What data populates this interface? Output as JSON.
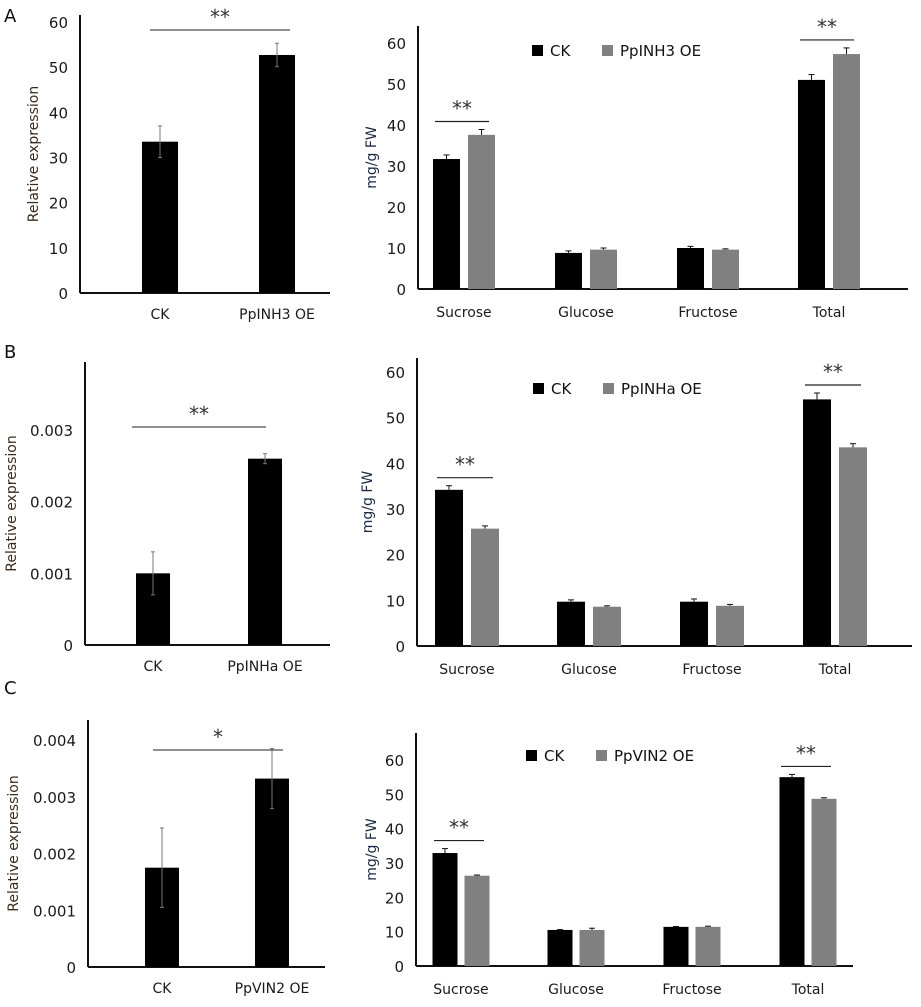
{
  "figure": {
    "panels": [
      {
        "letter": "A"
      },
      {
        "letter": "B"
      },
      {
        "letter": "C"
      }
    ]
  },
  "colors": {
    "ck": "#000000",
    "oe": "#808080",
    "axis": "#111111",
    "errorbar_left": "#777777",
    "errorbar_right": "#111111"
  },
  "chart_data": [
    {
      "id": "A-expression",
      "panel": "A",
      "type": "bar",
      "title": "",
      "xlabel": "",
      "ylabel": "Relative expression",
      "categories": [
        "CK",
        "PpINH3 OE"
      ],
      "values": [
        33.5,
        52.7
      ],
      "errors": [
        3.5,
        2.6
      ],
      "ylim": [
        0,
        60
      ],
      "yticks": [
        0,
        10,
        20,
        30,
        40,
        50,
        60
      ],
      "ytick_labels": [
        "0",
        "10",
        "20",
        "30",
        "40",
        "50",
        "60"
      ],
      "significance": [
        {
          "between": [
            "CK",
            "PpINH3 OE"
          ],
          "label": "**"
        }
      ],
      "grid": false
    },
    {
      "id": "A-sugars",
      "panel": "A",
      "type": "bar",
      "title": "",
      "xlabel": "",
      "ylabel": "mg/g FW",
      "categories": [
        "Sucrose",
        "Glucose",
        "Fructose",
        "Total"
      ],
      "series": [
        {
          "name": "CK",
          "values": [
            31.7,
            8.8,
            10.0,
            51.0
          ],
          "errors": [
            1.0,
            0.5,
            0.4,
            1.3
          ]
        },
        {
          "name": "PpINH3 OE",
          "values": [
            37.6,
            9.6,
            9.6,
            57.3
          ],
          "errors": [
            1.3,
            0.4,
            0.2,
            1.5
          ]
        }
      ],
      "ylim": [
        0,
        60
      ],
      "yticks": [
        0,
        10,
        20,
        30,
        40,
        50,
        60
      ],
      "ytick_labels": [
        "0",
        "10",
        "20",
        "30",
        "40",
        "50",
        "60"
      ],
      "legend": {
        "entries": [
          "CK",
          "PpINH3 OE"
        ],
        "placement": "top-center"
      },
      "significance": [
        {
          "category": "Sucrose",
          "label": "**"
        },
        {
          "category": "Total",
          "label": "**"
        }
      ],
      "grid": false
    },
    {
      "id": "B-expression",
      "panel": "B",
      "type": "bar",
      "title": "",
      "xlabel": "",
      "ylabel": "Relative expression",
      "categories": [
        "CK",
        "PpINHa OE"
      ],
      "values": [
        0.001,
        0.0026
      ],
      "errors": [
        0.0003,
        7e-05
      ],
      "ylim": [
        0,
        0.004
      ],
      "yticks": [
        0,
        0.001,
        0.002,
        0.003
      ],
      "ytick_labels": [
        "0",
        "0.001",
        "0.002",
        "0.003"
      ],
      "significance": [
        {
          "between": [
            "CK",
            "PpINHa OE"
          ],
          "label": "**"
        }
      ],
      "grid": false
    },
    {
      "id": "B-sugars",
      "panel": "B",
      "type": "bar",
      "title": "",
      "xlabel": "",
      "ylabel": "mg/g FW",
      "categories": [
        "Sucrose",
        "Glucose",
        "Fructose",
        "Total"
      ],
      "series": [
        {
          "name": "CK",
          "values": [
            34.2,
            9.7,
            9.7,
            54.0
          ],
          "errors": [
            0.9,
            0.4,
            0.6,
            1.4
          ]
        },
        {
          "name": "PpINHa OE",
          "values": [
            25.7,
            8.6,
            8.8,
            43.5
          ],
          "errors": [
            0.6,
            0.2,
            0.3,
            0.8
          ]
        }
      ],
      "ylim": [
        0,
        60
      ],
      "yticks": [
        0,
        10,
        20,
        30,
        40,
        50,
        60
      ],
      "ytick_labels": [
        "0",
        "10",
        "20",
        "30",
        "40",
        "50",
        "60"
      ],
      "legend": {
        "entries": [
          "CK",
          "PpINHa OE"
        ],
        "placement": "top-center"
      },
      "significance": [
        {
          "category": "Sucrose",
          "label": "**"
        },
        {
          "category": "Total",
          "label": "**"
        }
      ],
      "grid": false
    },
    {
      "id": "C-expression",
      "panel": "C",
      "type": "bar",
      "title": "",
      "xlabel": "",
      "ylabel": "Relative expression",
      "categories": [
        "CK",
        "PpVIN2 OE"
      ],
      "values": [
        0.00175,
        0.00332
      ],
      "errors": [
        0.0007,
        0.00053
      ],
      "ylim": [
        0,
        0.0043
      ],
      "yticks": [
        0,
        0.001,
        0.002,
        0.003,
        0.004
      ],
      "ytick_labels": [
        "0",
        "0.001",
        "0.002",
        "0.003",
        "0.004"
      ],
      "significance": [
        {
          "between": [
            "CK",
            "PpVIN2 OE"
          ],
          "label": "*"
        }
      ],
      "grid": false
    },
    {
      "id": "C-sugars",
      "panel": "C",
      "type": "bar",
      "title": "",
      "xlabel": "",
      "ylabel": "mg/g FW",
      "categories": [
        "Sucrose",
        "Glucose",
        "Fructose",
        "Total"
      ],
      "series": [
        {
          "name": "CK",
          "values": [
            32.9,
            10.5,
            11.4,
            55.0
          ],
          "errors": [
            1.3,
            0.1,
            0.1,
            0.8
          ]
        },
        {
          "name": "PpVIN2 OE",
          "values": [
            26.3,
            10.5,
            11.4,
            48.7
          ],
          "errors": [
            0.2,
            0.5,
            0.2,
            0.3
          ]
        }
      ],
      "ylim": [
        0,
        67
      ],
      "yticks": [
        0,
        10,
        20,
        30,
        40,
        50,
        60
      ],
      "ytick_labels": [
        "0",
        "10",
        "20",
        "30",
        "40",
        "50",
        "60"
      ],
      "legend": {
        "entries": [
          "CK",
          "PpVIN2 OE"
        ],
        "placement": "top-center"
      },
      "significance": [
        {
          "category": "Sucrose",
          "label": "**"
        },
        {
          "category": "Total",
          "label": "**"
        }
      ],
      "grid": false
    }
  ]
}
